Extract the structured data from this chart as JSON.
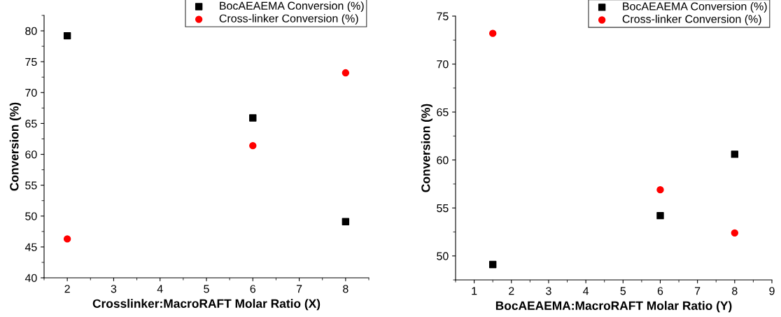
{
  "chart_data": [
    {
      "type": "scatter",
      "xlabel": "Crosslinker:MacroRAFT Molar Ratio (X)",
      "ylabel": "Conversion (%)",
      "x": [
        2,
        6,
        8
      ],
      "series": [
        {
          "name": "BocAEAEMA Conversion (%)",
          "color": "#000000",
          "marker": "square",
          "values": [
            79.2,
            65.9,
            49.1
          ]
        },
        {
          "name": "Cross-linker Conversion (%)",
          "color": "#ff0000",
          "marker": "circle",
          "values": [
            46.3,
            61.4,
            73.2
          ]
        }
      ],
      "xlim": [
        1.5,
        8.5
      ],
      "xticks": [
        2,
        3,
        4,
        5,
        6,
        7,
        8
      ],
      "ylim": [
        40,
        82.5
      ],
      "yticks": [
        40,
        45,
        50,
        55,
        60,
        65,
        70,
        75,
        80
      ],
      "grid": false,
      "legend": "top right"
    },
    {
      "type": "scatter",
      "xlabel": "BocAEAEMA:MacroRAFT Molar Ratio (Y)",
      "ylabel": "Conversion (%)",
      "x": [
        1.5,
        6,
        8
      ],
      "series": [
        {
          "name": "BocAEAEMA Conversion (%)",
          "color": "#000000",
          "marker": "square",
          "values": [
            49.1,
            54.2,
            60.6
          ]
        },
        {
          "name": "Cross-linker Conversion (%)",
          "color": "#ff0000",
          "marker": "circle",
          "values": [
            73.2,
            56.9,
            52.4
          ]
        }
      ],
      "xlim": [
        0.5,
        9
      ],
      "xticks": [
        1,
        2,
        3,
        4,
        5,
        6,
        7,
        8,
        9
      ],
      "ylim": [
        47.5,
        75
      ],
      "yticks": [
        50,
        55,
        60,
        65,
        70,
        75
      ],
      "grid": false,
      "legend": "top right"
    }
  ]
}
